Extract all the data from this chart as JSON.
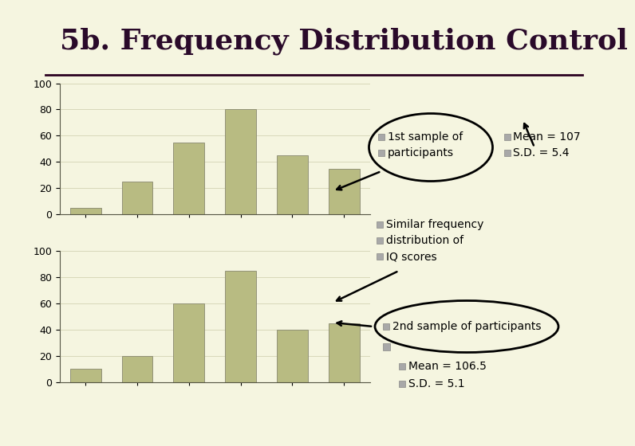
{
  "title": "5b. Frequency Distribution Control",
  "background_color": "#f5f5e0",
  "bar_color": "#b8bb82",
  "chart1_values": [
    5,
    25,
    55,
    80,
    45,
    35
  ],
  "chart2_values": [
    10,
    20,
    60,
    85,
    40,
    45
  ],
  "ylim": [
    0,
    100
  ],
  "yticks": [
    0,
    20,
    40,
    60,
    80,
    100
  ],
  "legend1_label1": "1st sample of",
  "legend1_label2": "participants",
  "legend1_stat1": "Mean = 107",
  "legend1_stat2": "S.D. = 5.4",
  "legend2_label1": "Similar frequency",
  "legend2_label2": "distribution of",
  "legend2_label3": "IQ scores",
  "legend3_label1": "2nd sample of participants",
  "legend3_stat1": "Mean = 106.5",
  "legend3_stat2": "S.D. = 5.1",
  "title_color": "#2a0a2a",
  "header_bar_color": "#a8a8b8",
  "sq_color": "#a8a8a8",
  "title_fontsize": 26,
  "axis_fontsize": 9,
  "text_fontsize": 10
}
